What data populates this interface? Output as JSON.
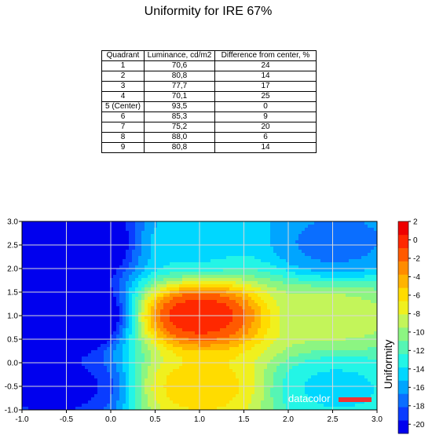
{
  "title": "Uniformity for IRE 67%",
  "table": {
    "headers": [
      "Quadrant",
      "Luminance, cd/m2",
      "Difference from center, %"
    ],
    "rows": [
      [
        "1",
        "70,6",
        "24"
      ],
      [
        "2",
        "80,8",
        "14"
      ],
      [
        "3",
        "77,7",
        "17"
      ],
      [
        "4",
        "70,1",
        "25"
      ],
      [
        "5 (Center)",
        "93,5",
        "0"
      ],
      [
        "6",
        "85,3",
        "9"
      ],
      [
        "7",
        "75,2",
        "20"
      ],
      [
        "8",
        "88,0",
        "6"
      ],
      [
        "9",
        "80,8",
        "14"
      ]
    ]
  },
  "watermark": "datacolor",
  "chart_data": {
    "type": "heatmap",
    "xlim": [
      -1.0,
      3.0
    ],
    "ylim": [
      -1.0,
      3.0
    ],
    "x_ticks": [
      "-1.0",
      "-0.5",
      "0.0",
      "0.5",
      "1.0",
      "1.5",
      "2.0",
      "2.5",
      "3.0"
    ],
    "y_ticks": [
      "3.0",
      "2.5",
      "2.0",
      "1.5",
      "1.0",
      "0.5",
      "0.0",
      "-0.5",
      "-1.0"
    ],
    "grid": true,
    "colorbar": {
      "label": "Uniformity",
      "range": [
        -21,
        2
      ],
      "ticks": [
        "2",
        "0",
        "-2",
        "-4",
        "-6",
        "-8",
        "-10",
        "-12",
        "-14",
        "-16",
        "-18",
        "-20"
      ],
      "colors": [
        "#0000ee",
        "#0a3cff",
        "#0a6eff",
        "#00a5ff",
        "#00d7ff",
        "#23f5e6",
        "#55f5b4",
        "#8cf582",
        "#c3f55a",
        "#f0f01e",
        "#ffdc00",
        "#ffb400",
        "#ff8c00",
        "#ff5a00",
        "#ff2800",
        "#ee0000"
      ]
    },
    "quadrants": [
      {
        "id": "1",
        "x": -0.5,
        "y": 2.5,
        "difference": -24
      },
      {
        "id": "2",
        "x": 1.0,
        "y": 2.5,
        "difference": -14
      },
      {
        "id": "3",
        "x": 2.5,
        "y": 2.5,
        "difference": -17
      },
      {
        "id": "4",
        "x": -0.5,
        "y": 1.0,
        "difference": -25
      },
      {
        "id": "5 (Center)",
        "x": 1.0,
        "y": 1.0,
        "difference": 0
      },
      {
        "id": "6",
        "x": 2.5,
        "y": 1.0,
        "difference": -9
      },
      {
        "id": "7",
        "x": -0.5,
        "y": -0.5,
        "difference": -20
      },
      {
        "id": "8",
        "x": 1.0,
        "y": -0.5,
        "difference": -6
      },
      {
        "id": "9",
        "x": 2.5,
        "y": -0.5,
        "difference": -14
      }
    ]
  }
}
